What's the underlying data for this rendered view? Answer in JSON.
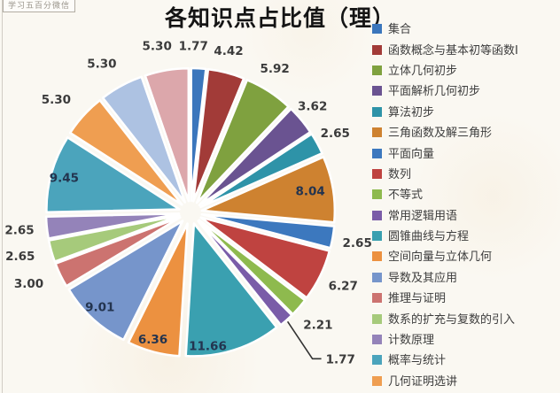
{
  "watermark": "学习五百分微信",
  "title": "各知识点占比值（理）",
  "chart_data": {
    "type": "pie",
    "title": "各知识点占比值（理）",
    "value_unit": "percent",
    "legend_position": "right",
    "exploded": true,
    "slices": [
      {
        "name": "集合",
        "value": 1.77,
        "label": "1.77",
        "color": "#3B76BC",
        "label_pos": "outside"
      },
      {
        "name": "函数概念与基本初等函数Ⅰ",
        "value": 4.42,
        "label": "4.42",
        "color": "#A23B38",
        "label_pos": "outside"
      },
      {
        "name": "立体几何初步",
        "value": 5.92,
        "label": "5.92",
        "color": "#7FA13F",
        "label_pos": "outside"
      },
      {
        "name": "平面解析几何初步",
        "value": 3.62,
        "label": "3.62",
        "color": "#6A5391",
        "label_pos": "outside"
      },
      {
        "name": "算法初步",
        "value": 2.65,
        "label": "2.65",
        "color": "#2E93A8",
        "label_pos": "outside"
      },
      {
        "name": "三角函数及解三角形",
        "value": 8.04,
        "label": "8.04",
        "color": "#CE8230",
        "label_pos": "inside"
      },
      {
        "name": "平面向量",
        "value": 2.65,
        "label": "2.65",
        "color": "#3C78BE",
        "label_pos": "outside"
      },
      {
        "name": "数列",
        "value": 6.27,
        "label": "6.27",
        "color": "#BF4340",
        "label_pos": "outside"
      },
      {
        "name": "不等式",
        "value": 2.21,
        "label": "2.21",
        "color": "#8EBA4E",
        "label_pos": "outside"
      },
      {
        "name": "常用逻辑用语",
        "value": 1.77,
        "label": "1.77",
        "color": "#7A5CA8",
        "label_pos": "leader"
      },
      {
        "name": "圆锥曲线与方程",
        "value": 11.66,
        "label": "11.66",
        "color": "#3AA0B0",
        "label_pos": "inside"
      },
      {
        "name": "空间向量与立体几何",
        "value": 6.36,
        "label": "6.36",
        "color": "#EC9140",
        "label_pos": "inside"
      },
      {
        "name": "导数及其应用",
        "value": 9.01,
        "label": "9.01",
        "color": "#7695CB",
        "label_pos": "inside"
      },
      {
        "name": "推理与证明",
        "value": 3.0,
        "label": "3.00",
        "color": "#CC7370",
        "label_pos": "outside"
      },
      {
        "name": "数系的扩充与复数的引入",
        "value": 2.65,
        "label": "2.65",
        "color": "#A6CA7B",
        "label_pos": "outside"
      },
      {
        "name": "计数原理",
        "value": 2.65,
        "label": "2.65",
        "color": "#9483B9",
        "label_pos": "outside"
      },
      {
        "name": "概率与统计",
        "value": 9.45,
        "label": "9.45",
        "color": "#4BA4BC",
        "label_pos": "inside"
      },
      {
        "name": "几何证明选讲",
        "value": 5.3,
        "label": "5.30",
        "color": "#EF9E51",
        "label_pos": "outside"
      },
      {
        "name": "",
        "value": 5.3,
        "label": "5.30",
        "color": "#ADC2E2",
        "label_pos": "outside"
      },
      {
        "name": "",
        "value": 5.3,
        "label": "5.30",
        "color": "#DCA7AB",
        "label_pos": "outside"
      }
    ]
  }
}
